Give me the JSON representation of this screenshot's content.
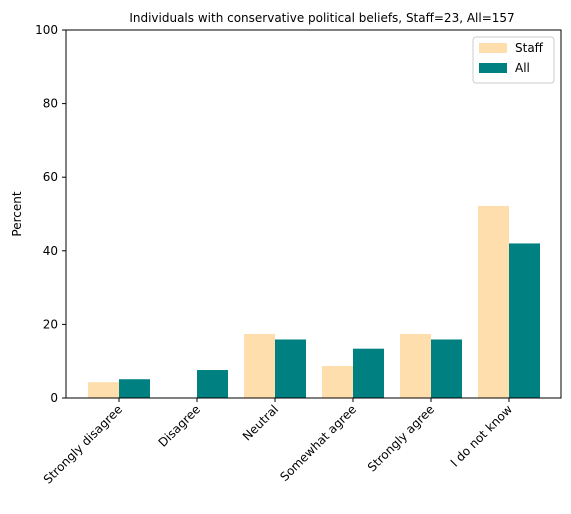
{
  "chart_data": {
    "type": "bar",
    "title": "Individuals with conservative political beliefs, Staff=23, All=157",
    "xlabel": "",
    "ylabel": "Percent",
    "ylim": [
      0,
      100
    ],
    "yticks": [
      0,
      20,
      40,
      60,
      80,
      100
    ],
    "categories": [
      "Strongly disagree",
      "Disagree",
      "Neutral",
      "Somewhat agree",
      "Strongly agree",
      "I do not know"
    ],
    "series": [
      {
        "name": "Staff",
        "color": "#ffdead",
        "values": [
          4.3,
          0,
          17.4,
          8.7,
          17.4,
          52.2
        ]
      },
      {
        "name": "All",
        "color": "#008080",
        "values": [
          5.1,
          7.6,
          15.9,
          13.4,
          15.9,
          42.0
        ]
      }
    ],
    "grid": false,
    "legend_position": "top-right"
  }
}
